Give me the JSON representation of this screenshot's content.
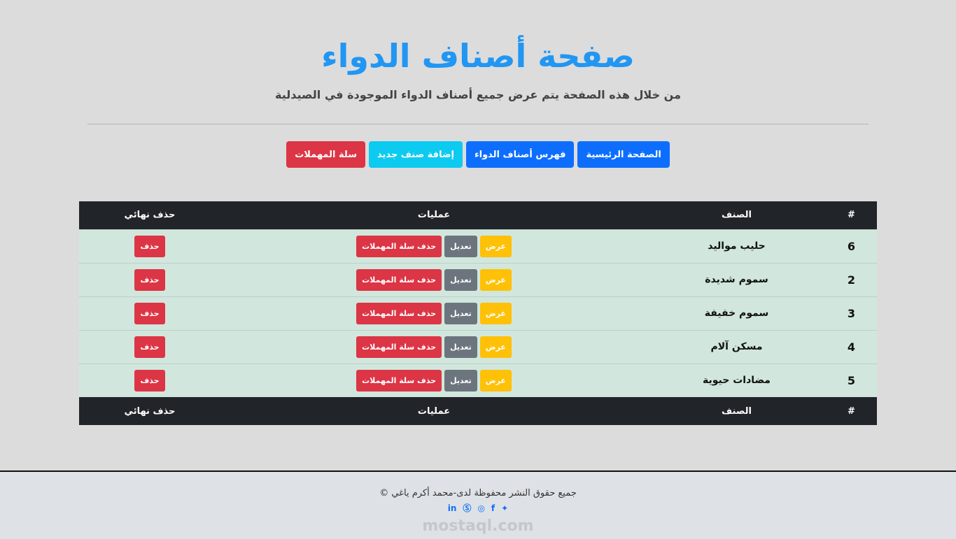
{
  "header": {
    "title": "صفحة أصناف الدواء",
    "subtitle": "من خلال هذه الصفحة يتم عرض جميع أصناف الدواء الموجودة في الصيدلية"
  },
  "nav": {
    "home": "الصفحة الرئيسية",
    "index": "فهرس أصناف الدواء",
    "add": "إضافة صنف جديد",
    "trash": "سلة المهملات"
  },
  "table": {
    "headers": [
      "#",
      "الصنف",
      "عمليات",
      "حذف نهائي"
    ],
    "actions": {
      "view": "عرض",
      "edit": "تعديل",
      "trash": "حذف سلة المهملات",
      "delete": "حذف"
    },
    "rows": [
      {
        "id": "6",
        "name": "حليب مواليد"
      },
      {
        "id": "2",
        "name": "سموم شديدة"
      },
      {
        "id": "3",
        "name": "سموم خفيفة"
      },
      {
        "id": "4",
        "name": "مسكن آلام"
      },
      {
        "id": "5",
        "name": "مضادات حيوية"
      }
    ]
  },
  "footer": {
    "copyright": "جميع حقوق النشر محفوظة لدى-محمد أكرم ياغي ©",
    "watermark": "mostaql.com",
    "social": [
      "twitter-icon",
      "facebook-icon",
      "instagram-icon",
      "skype-icon",
      "linkedin-icon"
    ]
  },
  "colors": {
    "title": "#2196f3",
    "primary": "#0d6efd",
    "info": "#0dcaf0",
    "danger": "#dc3545",
    "warning": "#ffc107",
    "secondary": "#6c757d",
    "row": "#d1e7dd",
    "dark": "#212529"
  }
}
